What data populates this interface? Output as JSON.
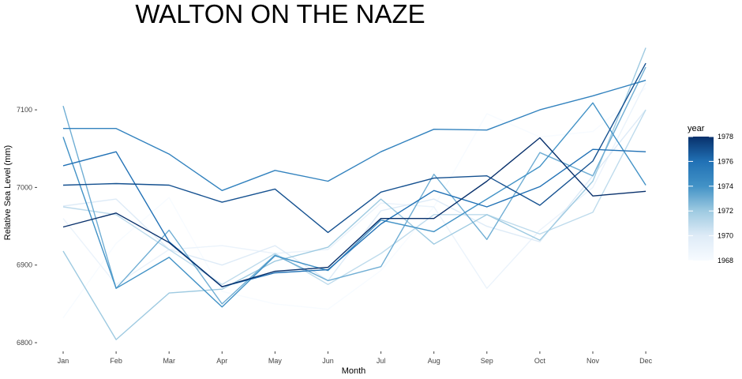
{
  "chart_data": {
    "type": "line",
    "title": "WALTON ON THE NAZE",
    "xlabel": "Month",
    "ylabel": "Relative Sea Level (mm)",
    "categories": [
      "Jan",
      "Feb",
      "Mar",
      "Apr",
      "May",
      "Jun",
      "Jul",
      "Aug",
      "Sep",
      "Oct",
      "Nov",
      "Dec"
    ],
    "ylim": [
      6790,
      7180
    ],
    "yticks": [
      6800,
      6900,
      7000,
      7100
    ],
    "ytick_labels": [
      "6800",
      "6900",
      "7000",
      "7100"
    ],
    "grid": false,
    "legend": {
      "title": "year",
      "type": "colorbar",
      "range": [
        1968,
        1978
      ],
      "ticks": [
        1968,
        1970,
        1972,
        1974,
        1976,
        1978
      ],
      "tick_labels": [
        "1968",
        "1970",
        "1972",
        "1974",
        "1976",
        "1978"
      ],
      "position": "right",
      "color_low": "#f7fbff",
      "color_high": "#08306b"
    },
    "series": [
      {
        "year": 1968,
        "values": [
          6832,
          6928,
          6987,
          6866,
          6850,
          6843,
          6893,
          6975,
          7095,
          7065,
          7072,
          7128
        ]
      },
      {
        "year": 1969,
        "values": [
          6960,
          6875,
          6920,
          6925,
          6915,
          6920,
          6980,
          6975,
          6870,
          6945,
          7000,
          7135
        ]
      },
      {
        "year": 1970,
        "values": [
          6976,
          6985,
          6920,
          6900,
          6925,
          6880,
          6970,
          6985,
          6950,
          6930,
          7015,
          7100
        ]
      },
      {
        "year": 1971,
        "values": [
          6975,
          6965,
          6920,
          6875,
          6915,
          6875,
          6915,
          6965,
          6965,
          6940,
          6968,
          7100
        ]
      },
      {
        "year": 1972,
        "values": [
          6918,
          6804,
          6864,
          6869,
          6905,
          6923,
          6985,
          6927,
          6965,
          6932,
          7008,
          7180
        ]
      },
      {
        "year": 1973,
        "values": [
          7105,
          6870,
          6945,
          6850,
          6913,
          6880,
          6898,
          7017,
          6933,
          7045,
          7015,
          7155
        ]
      },
      {
        "year": 1974,
        "values": [
          7065,
          6870,
          6910,
          6846,
          6912,
          6893,
          6958,
          6943,
          6985,
          7027,
          7109,
          7003
        ]
      },
      {
        "year": 1975,
        "values": [
          7076,
          7076,
          7043,
          6996,
          7022,
          7008,
          7046,
          7075,
          7074,
          7100,
          7118,
          7138
        ]
      },
      {
        "year": 1976,
        "values": [
          7028,
          7046,
          6930,
          6872,
          6890,
          6894,
          6953,
          6996,
          6975,
          7001,
          7049,
          7046
        ]
      },
      {
        "year": 1977,
        "values": [
          7003,
          7005,
          7003,
          6981,
          6998,
          6942,
          6994,
          7012,
          7015,
          6977,
          7034,
          7160
        ]
      },
      {
        "year": 1978,
        "values": [
          6949,
          6967,
          6929,
          6872,
          6892,
          6897,
          6960,
          6960,
          7008,
          7064,
          6989,
          6995
        ]
      }
    ]
  }
}
